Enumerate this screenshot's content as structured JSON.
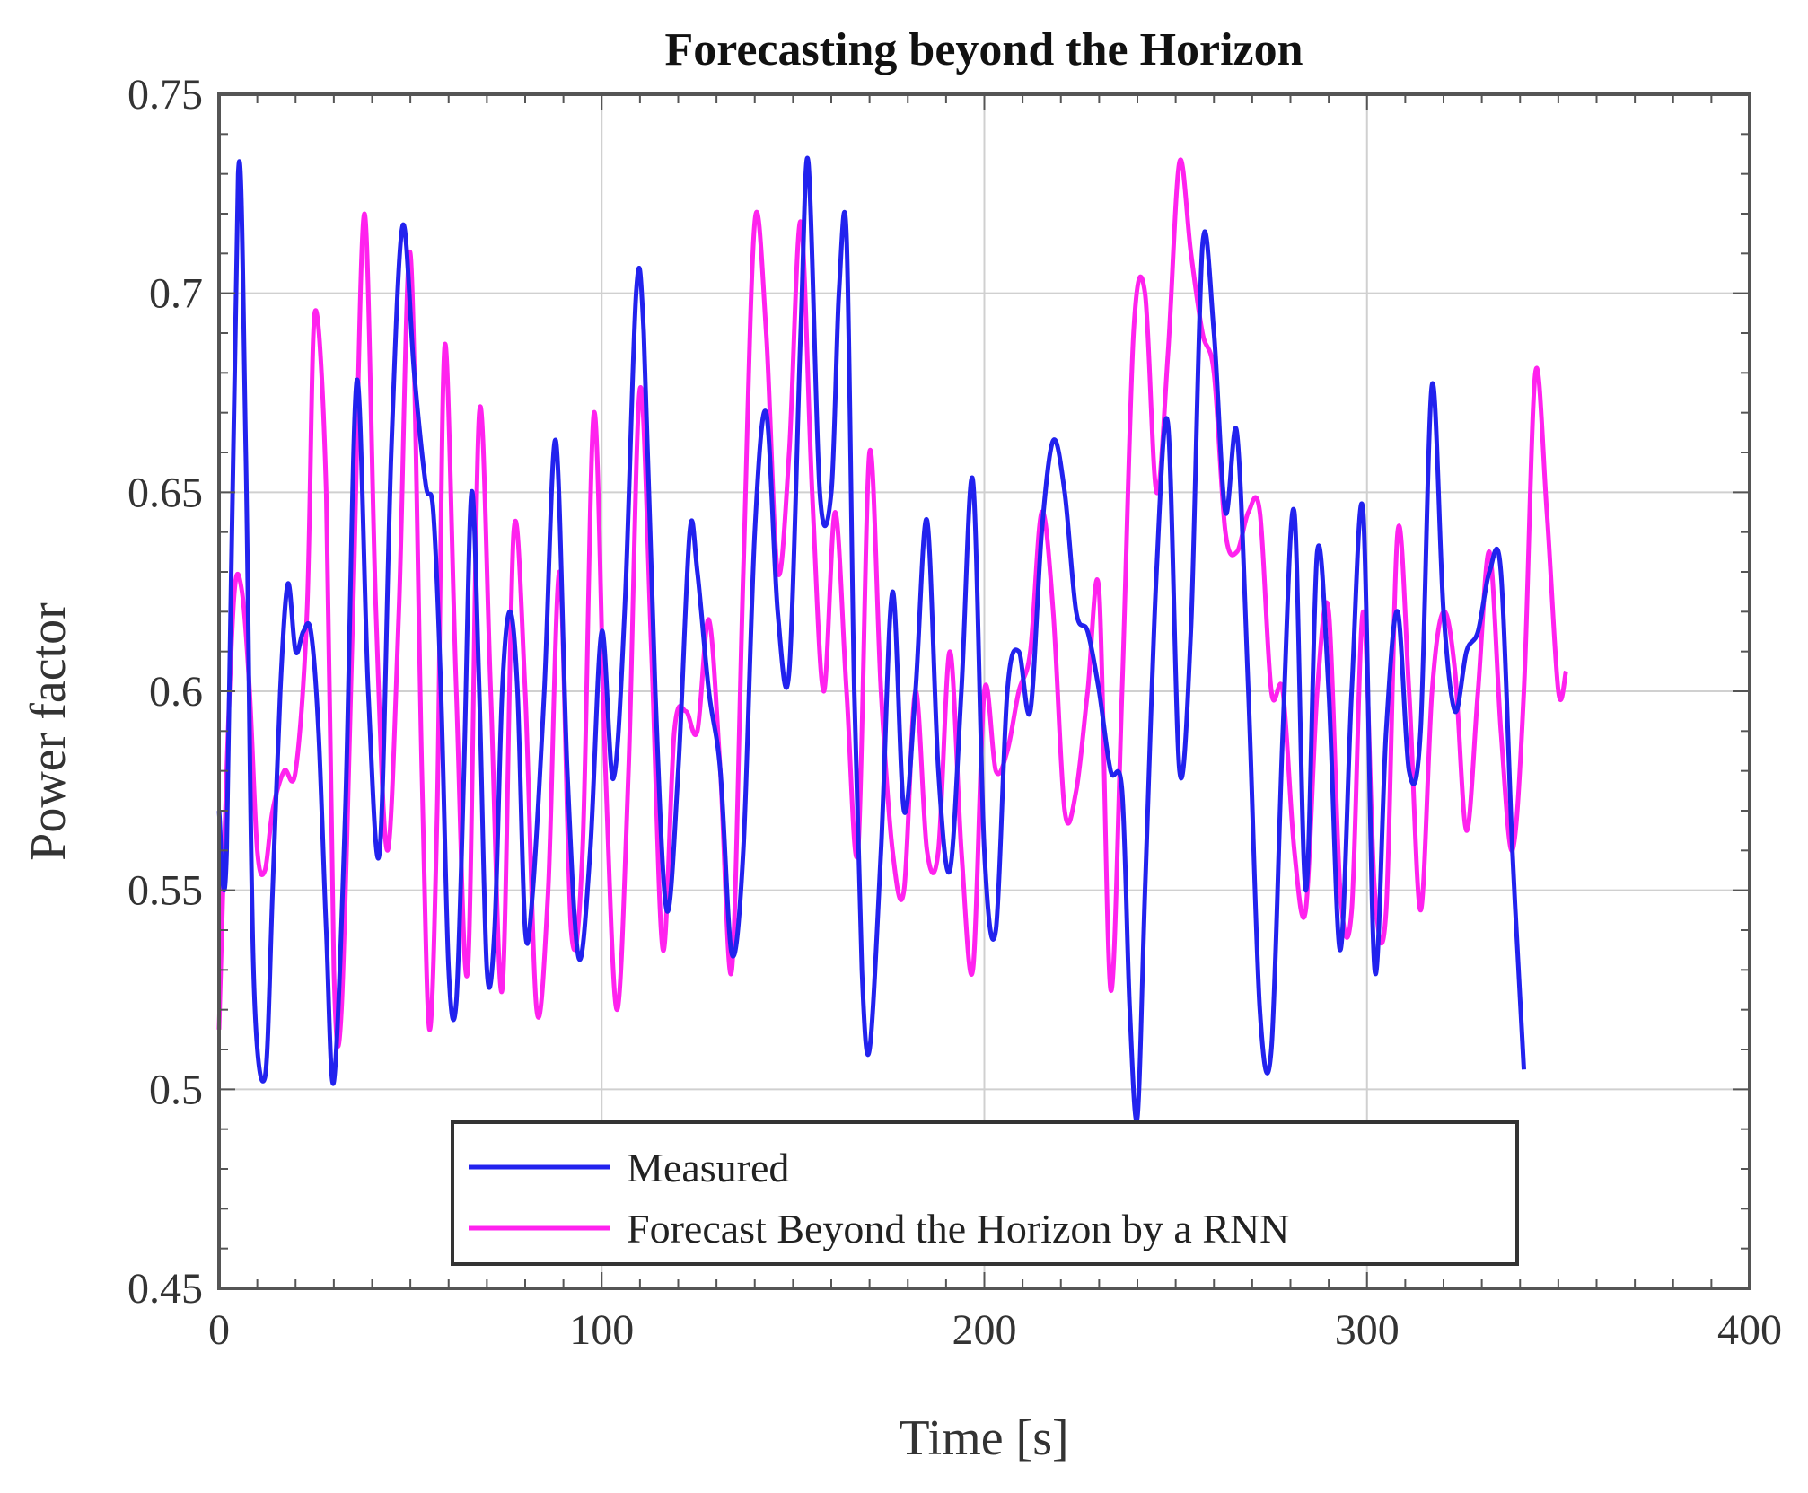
{
  "chart_data": {
    "type": "line",
    "title": "Forecasting beyond the Horizon",
    "xlabel": "Time [s]",
    "ylabel": "Power factor",
    "xlim": [
      0,
      400
    ],
    "ylim": [
      0.45,
      0.75
    ],
    "xticks": [
      0,
      100,
      200,
      300,
      400
    ],
    "xtick_labels": [
      "0",
      "100",
      "200",
      "300",
      "400"
    ],
    "yticks": [
      0.45,
      0.5,
      0.55,
      0.6,
      0.65,
      0.7,
      0.75
    ],
    "ytick_labels": [
      "0.45",
      "0.5",
      "0.55",
      "0.6",
      "0.65",
      "0.7",
      "0.75"
    ],
    "grid": true,
    "legend_position": "bottom-center",
    "series": [
      {
        "name": "Measured",
        "color": "#2222ee",
        "x": [
          0,
          2,
          5,
          7,
          9,
          12,
          14,
          16,
          18,
          20,
          22,
          24,
          26,
          28,
          30,
          33,
          36,
          39,
          42,
          45,
          48,
          51,
          54,
          56,
          58,
          60,
          62,
          64,
          66,
          68,
          70,
          72,
          74,
          76,
          78,
          80,
          82,
          85,
          88,
          91,
          94,
          97,
          100,
          103,
          106,
          109,
          111,
          114,
          117,
          120,
          123,
          125,
          128,
          131,
          134,
          137,
          140,
          143,
          146,
          149,
          152,
          154,
          157,
          160,
          162,
          164,
          166,
          168,
          170,
          173,
          176,
          179,
          182,
          185,
          188,
          191,
          194,
          197,
          200,
          203,
          206,
          209,
          212,
          215,
          218,
          221,
          224,
          227,
          230,
          233,
          236,
          238,
          240,
          242,
          245,
          248,
          251,
          254,
          257,
          260,
          263,
          266,
          269,
          272,
          275,
          278,
          281,
          284,
          287,
          290,
          293,
          296,
          299,
          302,
          305,
          308,
          311,
          314,
          317,
          320,
          323,
          326,
          329,
          332,
          335,
          338,
          341
        ],
        "values": [
          0.57,
          0.56,
          0.73,
          0.66,
          0.53,
          0.503,
          0.55,
          0.6,
          0.627,
          0.61,
          0.615,
          0.615,
          0.59,
          0.54,
          0.502,
          0.57,
          0.678,
          0.6,
          0.56,
          0.66,
          0.717,
          0.68,
          0.652,
          0.645,
          0.6,
          0.53,
          0.522,
          0.58,
          0.65,
          0.6,
          0.53,
          0.54,
          0.6,
          0.62,
          0.6,
          0.54,
          0.55,
          0.6,
          0.663,
          0.58,
          0.533,
          0.56,
          0.615,
          0.578,
          0.62,
          0.7,
          0.69,
          0.6,
          0.545,
          0.58,
          0.64,
          0.63,
          0.6,
          0.58,
          0.534,
          0.56,
          0.64,
          0.67,
          0.62,
          0.605,
          0.69,
          0.733,
          0.65,
          0.65,
          0.7,
          0.714,
          0.6,
          0.53,
          0.51,
          0.56,
          0.625,
          0.57,
          0.6,
          0.643,
          0.58,
          0.555,
          0.6,
          0.653,
          0.56,
          0.54,
          0.6,
          0.61,
          0.595,
          0.64,
          0.663,
          0.65,
          0.62,
          0.615,
          0.6,
          0.58,
          0.575,
          0.52,
          0.493,
          0.55,
          0.63,
          0.667,
          0.58,
          0.616,
          0.712,
          0.69,
          0.645,
          0.665,
          0.6,
          0.52,
          0.51,
          0.59,
          0.645,
          0.55,
          0.635,
          0.6,
          0.535,
          0.6,
          0.645,
          0.53,
          0.59,
          0.62,
          0.58,
          0.59,
          0.677,
          0.62,
          0.595,
          0.61,
          0.615,
          0.63,
          0.63,
          0.56,
          0.505
        ]
      },
      {
        "name": "Forecast Beyond the Horizon by a RNN",
        "color": "#ff22ee",
        "x": [
          0,
          2,
          4,
          6,
          8,
          10,
          12,
          14,
          17,
          20,
          23,
          25,
          28,
          30,
          32,
          35,
          38,
          41,
          44,
          47,
          50,
          53,
          55,
          57,
          59,
          62,
          65,
          68,
          71,
          74,
          77,
          80,
          83,
          86,
          89,
          92,
          95,
          98,
          101,
          104,
          107,
          110,
          113,
          116,
          119,
          122,
          125,
          128,
          131,
          134,
          137,
          140,
          143,
          146,
          149,
          152,
          155,
          158,
          161,
          164,
          167,
          170,
          173,
          176,
          179,
          182,
          185,
          188,
          191,
          194,
          197,
          200,
          203,
          206,
          209,
          212,
          215,
          218,
          221,
          224,
          227,
          230,
          233,
          236,
          239,
          242,
          245,
          248,
          251,
          254,
          257,
          260,
          263,
          266,
          269,
          272,
          275,
          278,
          281,
          284,
          287,
          290,
          293,
          296,
          299,
          302,
          305,
          308,
          311,
          314,
          317,
          320,
          323,
          326,
          329,
          332,
          335,
          338,
          341,
          344,
          347,
          350,
          352
        ],
        "values": [
          0.515,
          0.58,
          0.625,
          0.625,
          0.6,
          0.56,
          0.555,
          0.57,
          0.58,
          0.58,
          0.62,
          0.695,
          0.65,
          0.53,
          0.52,
          0.62,
          0.72,
          0.62,
          0.56,
          0.62,
          0.71,
          0.58,
          0.515,
          0.57,
          0.687,
          0.6,
          0.53,
          0.67,
          0.6,
          0.525,
          0.64,
          0.6,
          0.52,
          0.55,
          0.63,
          0.54,
          0.56,
          0.67,
          0.58,
          0.52,
          0.58,
          0.676,
          0.61,
          0.535,
          0.59,
          0.595,
          0.59,
          0.618,
          0.58,
          0.53,
          0.63,
          0.718,
          0.69,
          0.63,
          0.66,
          0.718,
          0.65,
          0.6,
          0.645,
          0.6,
          0.56,
          0.66,
          0.6,
          0.56,
          0.55,
          0.6,
          0.56,
          0.56,
          0.61,
          0.56,
          0.53,
          0.6,
          0.58,
          0.585,
          0.6,
          0.61,
          0.645,
          0.62,
          0.57,
          0.575,
          0.6,
          0.625,
          0.525,
          0.6,
          0.69,
          0.7,
          0.65,
          0.685,
          0.733,
          0.71,
          0.69,
          0.68,
          0.64,
          0.635,
          0.645,
          0.645,
          0.6,
          0.6,
          0.56,
          0.545,
          0.6,
          0.62,
          0.55,
          0.545,
          0.62,
          0.55,
          0.545,
          0.64,
          0.6,
          0.545,
          0.6,
          0.62,
          0.605,
          0.565,
          0.6,
          0.635,
          0.59,
          0.56,
          0.6,
          0.68,
          0.645,
          0.6,
          0.605
        ]
      }
    ]
  }
}
